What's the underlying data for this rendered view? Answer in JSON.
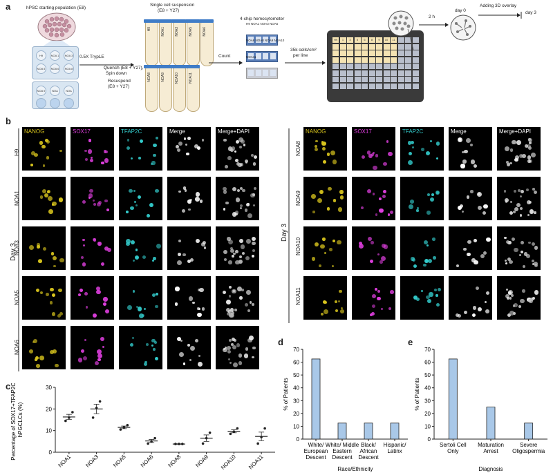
{
  "panels": {
    "a": "a",
    "b": "b",
    "c": "c",
    "d": "d",
    "e": "e"
  },
  "panel_a": {
    "starting_population": "hPSC starting population (E8)",
    "tryple": "0.5X TrypLE",
    "quench_1": "Quench (E8 + Y27),",
    "quench_2": "Spin down",
    "resuspend_1": "Resuspend",
    "resuspend_2": "(E8 + Y27)",
    "suspension_1": "Single cell suspension",
    "suspension_2": "(E8 + Y27)",
    "tubes_top": [
      "H9",
      "NOA1",
      "NOA3",
      "NOA5",
      "NOA6"
    ],
    "tubes_bottom": [
      "NOA8",
      "NOA9",
      "NOA10",
      "NOA11"
    ],
    "wells_top": [
      "H9",
      "NOA 1",
      "NOA 3",
      "NOA 5",
      "NOA 6",
      "NOA 8"
    ],
    "wells_bottom": [
      "NOA 9",
      "NOA 10",
      "NOA 11"
    ],
    "count": "Count",
    "hemocytometer": "4-chip hemocytometer",
    "hemo_row1": [
      "H9",
      "NOA1",
      "NOA3",
      "NOA5"
    ],
    "hemo_row2": [
      "NOA6",
      "NOA8",
      "NOA9",
      "NOA10"
    ],
    "hemo_row3": [
      "NOA11"
    ],
    "seeding_1": "35k cells/cm²",
    "seeding_2": "per line",
    "plate_cols": [
      "H9",
      "1",
      "3",
      "5",
      "6",
      "8",
      "9",
      "10",
      "11"
    ],
    "two_h": "2 h",
    "day0": "day 0",
    "overlay": "Adding 3D overlay",
    "day3": "day 3"
  },
  "panel_b": {
    "day_label": "Day 3",
    "channels": [
      "NANOG",
      "SOX17",
      "TFAP2C",
      "Merge",
      "Merge+DAPI"
    ],
    "channel_colors": [
      "#d9c51d",
      "#e23fe2",
      "#33cccc",
      "#ffffff",
      "#ffffff"
    ],
    "left_rows": [
      "H9",
      "NOA1",
      "NOA3",
      "NOA5",
      "NOA6"
    ],
    "right_rows": [
      "NOA8",
      "NOA9",
      "NOA10",
      "NOA11"
    ]
  },
  "chart_c": {
    "type": "scatter",
    "ylabel_1": "Percentage of SOX17+TFAP2C+",
    "ylabel_2": "hPGCLCs (%)",
    "ylim": [
      0,
      30
    ],
    "yticks": [
      0,
      10,
      20,
      30
    ],
    "categories": [
      "NOA1",
      "NOA3",
      "NOA5",
      "NOA6",
      "NOA8",
      "NOA9",
      "NOA10",
      "NOA11"
    ],
    "points": [
      [
        14.5,
        16,
        18.5
      ],
      [
        16,
        20.5,
        23.5
      ],
      [
        10.5,
        11.5,
        12.5
      ],
      [
        4,
        5,
        6.5
      ],
      [
        3.8,
        3.8,
        3.8
      ],
      [
        4,
        6.5,
        9
      ],
      [
        8.5,
        9.5,
        11
      ],
      [
        4,
        7,
        11
      ]
    ],
    "means": [
      16.3,
      20,
      11.5,
      5.2,
      3.8,
      6.5,
      9.7,
      7.3
    ],
    "errors": [
      1.2,
      2.2,
      0.6,
      0.7,
      0.1,
      1.5,
      0.7,
      2
    ]
  },
  "chart_d": {
    "type": "bar",
    "ylabel": "% of Patients",
    "xlabel": "Race/Ethnicity",
    "ylim": [
      0,
      70
    ],
    "yticks": [
      0,
      10,
      20,
      30,
      40,
      50,
      60,
      70
    ],
    "categories": [
      [
        "White/",
        "European",
        "Descent"
      ],
      [
        "White/ Middle",
        "Eastern",
        "Descent"
      ],
      [
        "Black/",
        "African",
        "Descent"
      ],
      [
        "Hispanic/",
        "Latinx"
      ]
    ],
    "values": [
      62.5,
      12.5,
      12.5,
      12.5
    ],
    "bar_color": "#a9c8e8"
  },
  "chart_e": {
    "type": "bar",
    "ylabel": "% of Patients",
    "xlabel": "Diagnosis",
    "ylim": [
      0,
      70
    ],
    "yticks": [
      0,
      10,
      20,
      30,
      40,
      50,
      60,
      70
    ],
    "categories": [
      [
        "Sertoli Cell",
        "Only"
      ],
      [
        "Maturation",
        "Arrest"
      ],
      [
        "Severe",
        "Oligospermia"
      ]
    ],
    "values": [
      62.5,
      25,
      12.5
    ],
    "bar_color": "#a9c8e8"
  }
}
